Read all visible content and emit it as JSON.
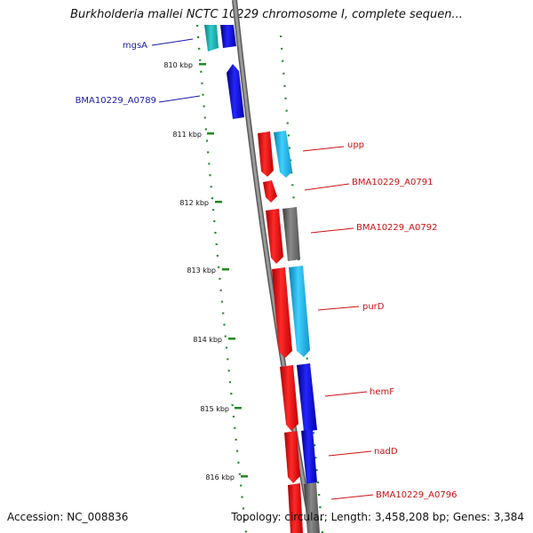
{
  "title": "Burkholderia mallei NCTC 10229 chromosome I, complete sequen...",
  "accession": "Accession: NC_008836",
  "summary": "Topology: circular; Length: 3,458,208 bp; Genes: 3,384",
  "colors": {
    "backbone": "#808080",
    "tick": "#1f8a1f",
    "label_forward": "#1a1aaa",
    "label_reverse": "#cc1111",
    "red": "#ee1111",
    "blue": "#1111dd",
    "cyan": "#22bbee",
    "teal": "#22aaaa",
    "gray": "#6e6e6e"
  },
  "ticks": [
    {
      "label": "810 kbp"
    },
    {
      "label": "811 kbp"
    },
    {
      "label": "812 kbp"
    },
    {
      "label": "813 kbp"
    },
    {
      "label": "814 kbp"
    },
    {
      "label": "815 kbp"
    },
    {
      "label": "816 kbp"
    }
  ],
  "gene_labels": [
    {
      "name": "mgsA",
      "strand": "forward"
    },
    {
      "name": "BMA10229_A0789",
      "strand": "forward"
    },
    {
      "name": "upp",
      "strand": "reverse"
    },
    {
      "name": "BMA10229_A0791",
      "strand": "reverse"
    },
    {
      "name": "BMA10229_A0792",
      "strand": "reverse"
    },
    {
      "name": "purD",
      "strand": "reverse"
    },
    {
      "name": "hemF",
      "strand": "reverse"
    },
    {
      "name": "nadD",
      "strand": "reverse"
    },
    {
      "name": "BMA10229_A0796",
      "strand": "reverse"
    }
  ]
}
